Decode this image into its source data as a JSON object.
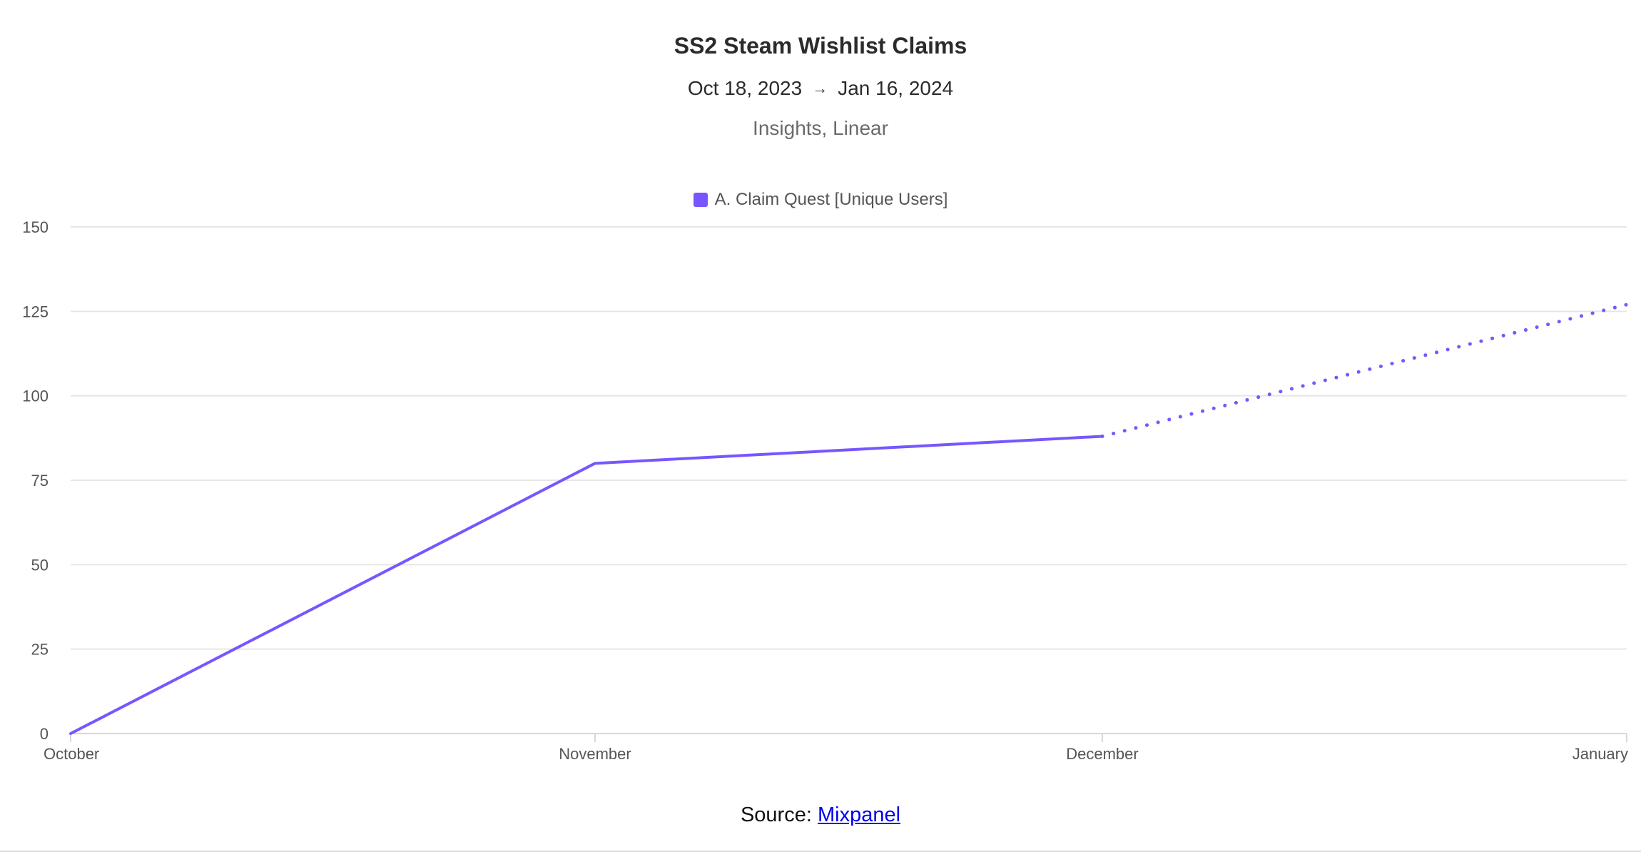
{
  "chart_data": {
    "type": "line",
    "title": "SS2 Steam Wishlist Claims",
    "date_range": {
      "start": "Oct 18, 2023",
      "separator": "→",
      "end": "Jan 16, 2024"
    },
    "subtitle": "Insights, Linear",
    "x": [
      "October",
      "November",
      "December",
      "January"
    ],
    "series": [
      {
        "name": "A. Claim Quest [Unique Users]",
        "color": "#7856ff",
        "values": [
          0,
          80,
          88,
          127
        ],
        "incomplete_from_index": 2
      }
    ],
    "ylim": [
      0,
      150
    ],
    "yticks": [
      0,
      25,
      50,
      75,
      100,
      125,
      150
    ],
    "grid": true,
    "legend_position": "top-center"
  },
  "source": {
    "label": "Source:",
    "link_text": "Mixpanel"
  }
}
